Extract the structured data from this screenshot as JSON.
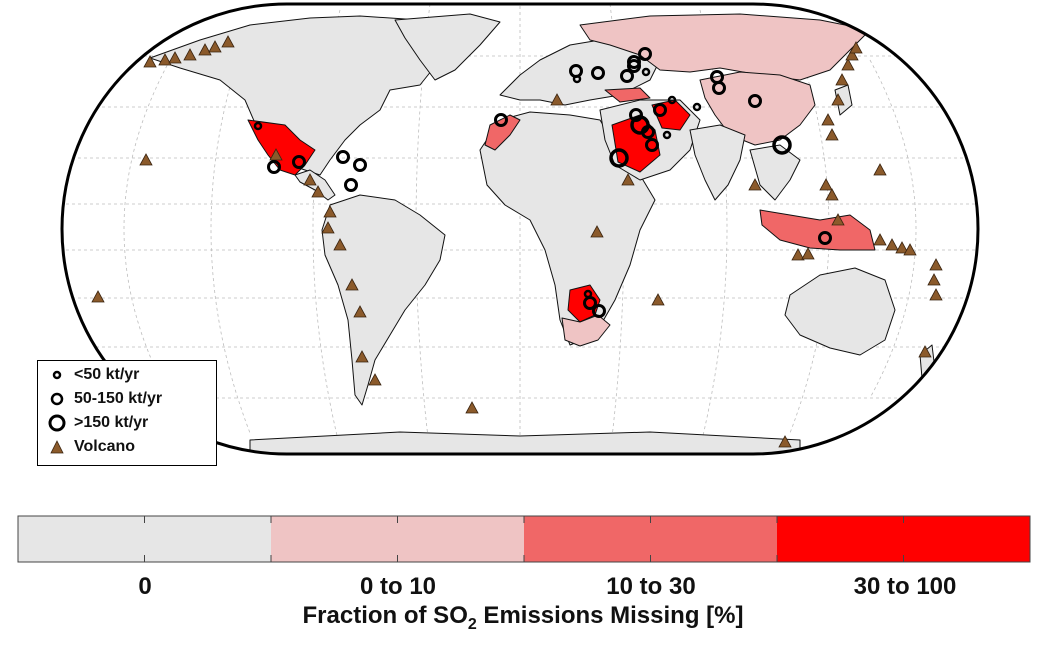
{
  "legend": {
    "items": [
      {
        "label": "<50 kt/yr",
        "symbol": "small-circle-icon"
      },
      {
        "label": "50-150 kt/yr",
        "symbol": "medium-circle-icon"
      },
      {
        "label": ">150 kt/yr",
        "symbol": "large-circle-icon"
      },
      {
        "label": "Volcano",
        "symbol": "volcano-triangle-icon"
      }
    ]
  },
  "colorbar": {
    "bins": [
      {
        "label": "0",
        "color": "#e6e6e6"
      },
      {
        "label": "0 to 10",
        "color": "#efc4c4"
      },
      {
        "label": "10 to 30",
        "color": "#f06767"
      },
      {
        "label": "30 to 100",
        "color": "#ff0000"
      }
    ],
    "title_main": "Fraction of SO",
    "title_sub": "2",
    "title_end": " Emissions Missing [%]"
  },
  "colors": {
    "ocean": "#ffffff",
    "land_default": "#e6e6e6",
    "border": "#111111",
    "volcano": "#8b5a2b",
    "source_ring": "#000000"
  },
  "map": {
    "projection": "Eckert III (world)",
    "shaded_regions": [
      {
        "name": "Russia",
        "bin": "0 to 10"
      },
      {
        "name": "China",
        "bin": "0 to 10"
      },
      {
        "name": "South Africa",
        "bin": "0 to 10"
      },
      {
        "name": "Mexico",
        "bin": "30 to 100"
      },
      {
        "name": "Saudi Arabia",
        "bin": "30 to 100"
      },
      {
        "name": "Iran",
        "bin": "30 to 100"
      },
      {
        "name": "Botswana",
        "bin": "30 to 100"
      },
      {
        "name": "Morocco",
        "bin": "10 to 30"
      },
      {
        "name": "Indonesia",
        "bin": "10 to 30"
      },
      {
        "name": "Turkey",
        "bin": "10 to 30"
      }
    ]
  }
}
